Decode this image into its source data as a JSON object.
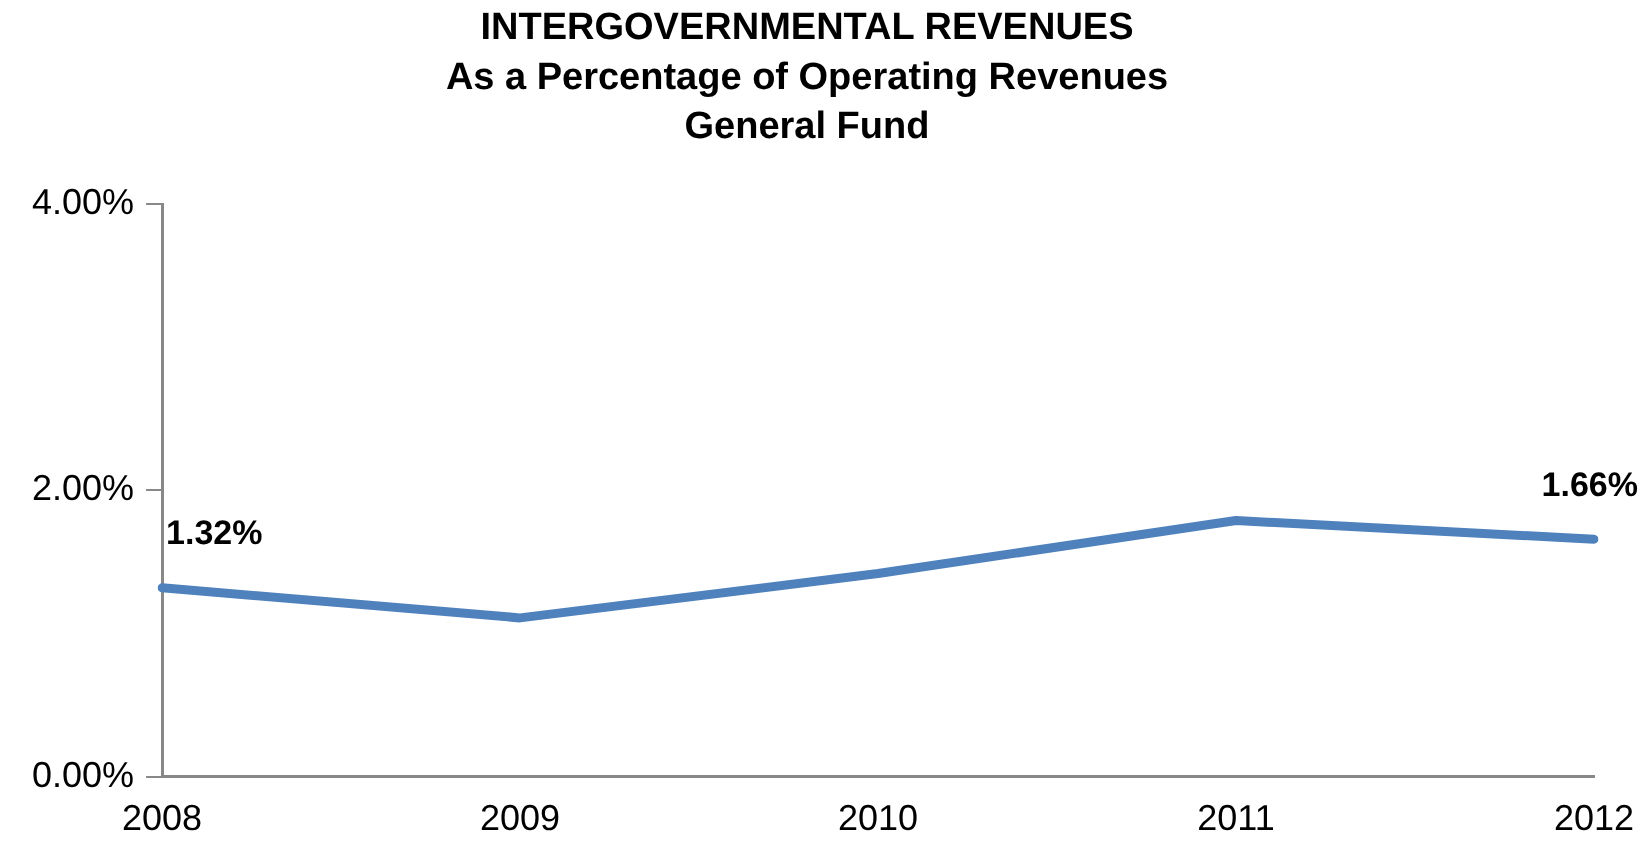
{
  "chart_data": {
    "type": "line",
    "title": "INTERGOVERNMENTAL REVENUES\nAs a Percentage of Operating Revenues\nGeneral Fund",
    "categories": [
      "2008",
      "2009",
      "2010",
      "2011",
      "2012"
    ],
    "series": [
      {
        "color": "#4f81bd",
        "values": [
          1.32,
          1.11,
          1.42,
          1.79,
          1.66
        ],
        "value_labels": [
          "1.32%",
          null,
          null,
          null,
          "1.66%"
        ]
      }
    ],
    "ylim": [
      0,
      4
    ],
    "yticks": [
      {
        "value": 0,
        "label": "0.00%"
      },
      {
        "value": 2,
        "label": "2.00%"
      },
      {
        "value": 4,
        "label": "4.00%"
      }
    ],
    "grid": false,
    "legend": false,
    "marker": "none",
    "line_style": "solid"
  }
}
